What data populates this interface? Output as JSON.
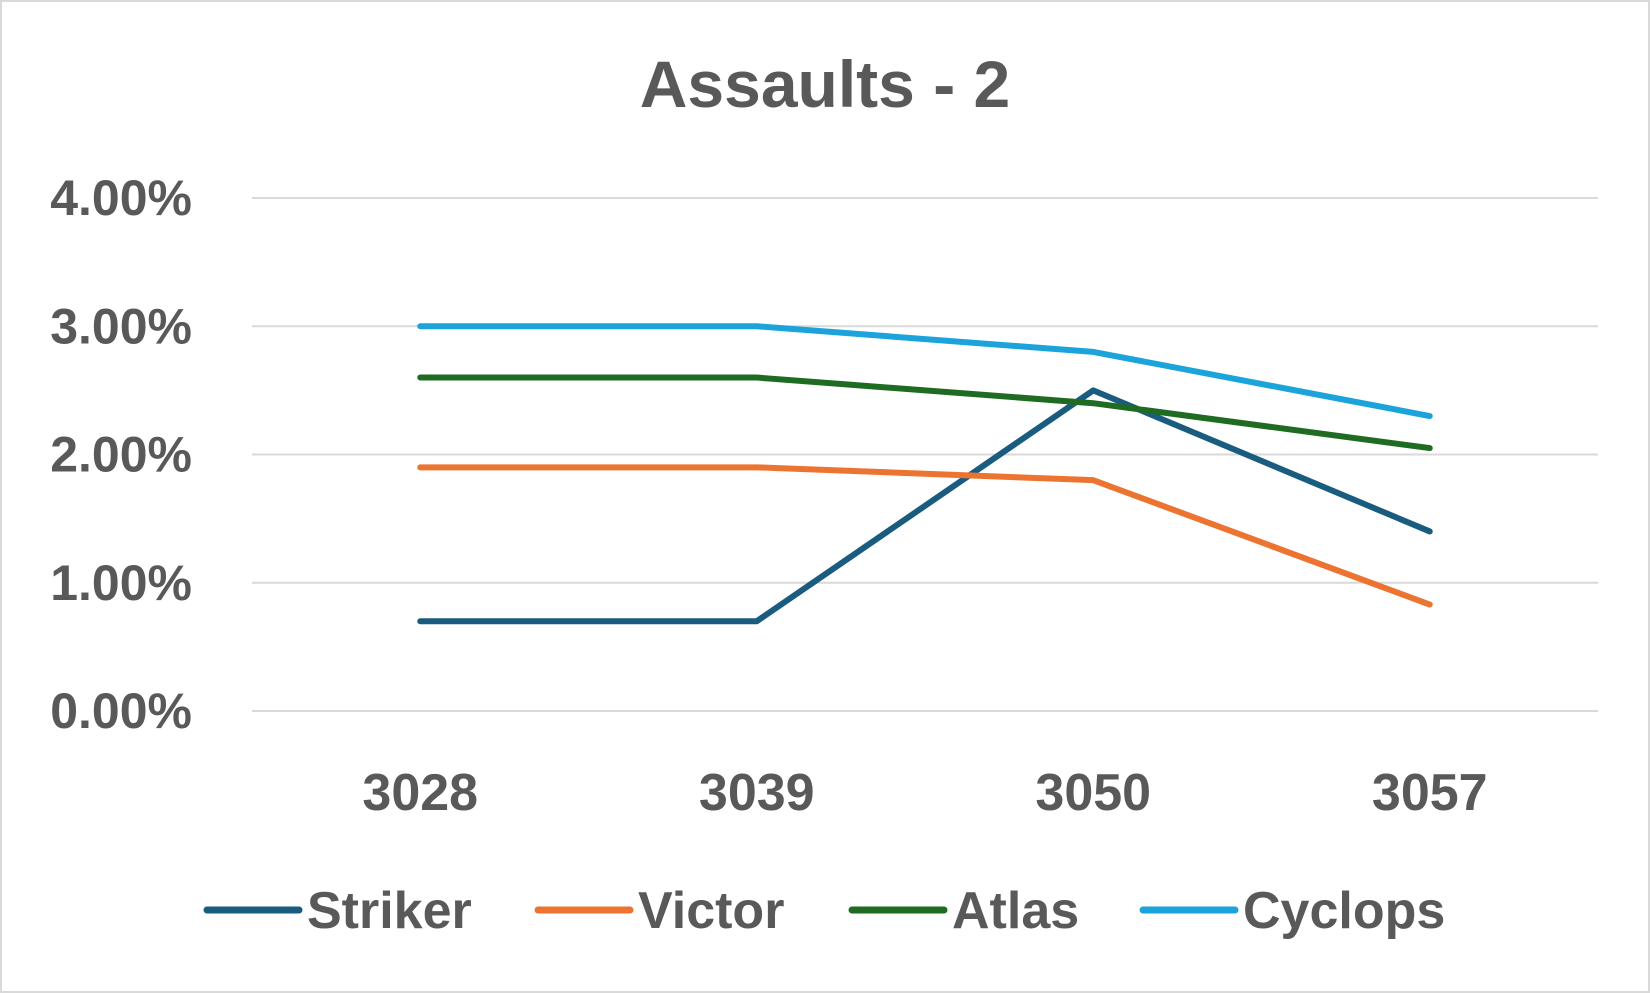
{
  "chart_data": {
    "type": "line",
    "title": "Assaults - 2",
    "xlabel": "",
    "ylabel": "",
    "categories": [
      "3028",
      "3039",
      "3050",
      "3057"
    ],
    "y_ticks": [
      "0.00%",
      "1.00%",
      "2.00%",
      "3.00%",
      "4.00%"
    ],
    "ylim": [
      0,
      4
    ],
    "grid": true,
    "legend_position": "bottom",
    "series": [
      {
        "name": "Striker",
        "color": "#1a5c7f",
        "values": [
          0.7,
          0.7,
          2.5,
          1.4
        ]
      },
      {
        "name": "Victor",
        "color": "#ec7330",
        "values": [
          1.9,
          1.9,
          1.8,
          0.83
        ]
      },
      {
        "name": "Atlas",
        "color": "#1e6b21",
        "values": [
          2.6,
          2.6,
          2.4,
          2.05
        ]
      },
      {
        "name": "Cyclops",
        "color": "#1ba3db",
        "values": [
          3.0,
          3.0,
          2.8,
          2.3
        ]
      }
    ]
  }
}
